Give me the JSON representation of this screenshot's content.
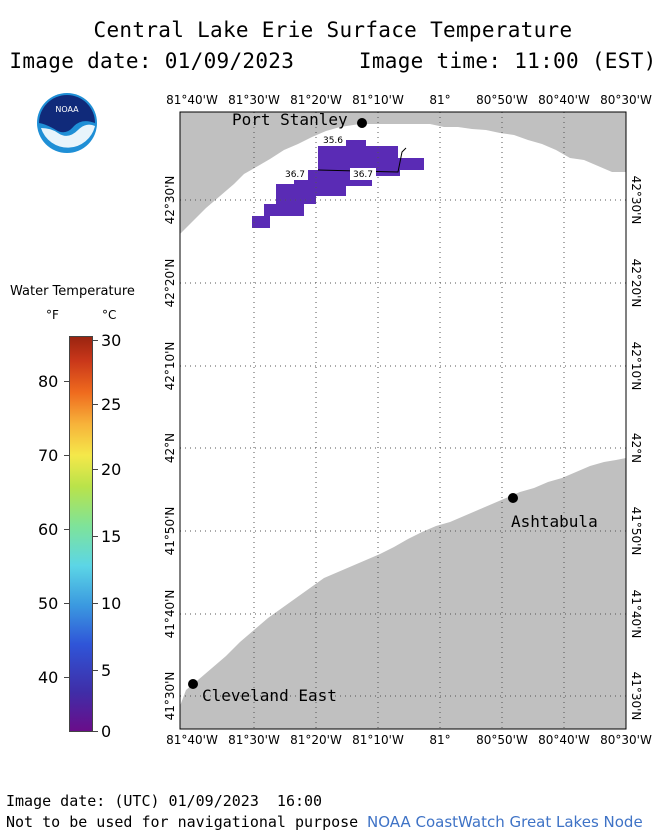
{
  "header": {
    "title": "Central Lake Erie Surface Temperature",
    "date_time": "Image date: 01/09/2023     Image time: 11:00 (EST)"
  },
  "logo": {
    "icon": "noaa-logo-icon",
    "text": "NOAA"
  },
  "legend": {
    "title": "Water Temperature",
    "unit_f": "°F",
    "unit_c": "°C",
    "fahrenheit_ticks": [
      "80",
      "70",
      "60",
      "50",
      "40"
    ],
    "celsius_ticks": [
      "30",
      "25",
      "20",
      "15",
      "10",
      "5",
      "0"
    ]
  },
  "map": {
    "lon_labels": [
      "81°40'W",
      "81°30'W",
      "81°20'W",
      "81°10'W",
      "81°",
      "80°50'W",
      "80°40'W",
      "80°30'W"
    ],
    "lat_labels": [
      "42°30'N",
      "42°20'N",
      "42°10'N",
      "42°N",
      "41°50'N",
      "41°40'N",
      "41°30'N"
    ],
    "cities": [
      {
        "name": "Port Stanley"
      },
      {
        "name": "Ashtabula"
      },
      {
        "name": "Cleveland East"
      }
    ],
    "contour_labels": [
      "35.6",
      "36.7",
      "36.7"
    ],
    "land_color": "#c0c0c0",
    "water_color": "#ffffff",
    "temperature_patch_color": "#5a2bb5"
  },
  "footer": {
    "utc_date": "Image date: (UTC) 01/09/2023  16:00",
    "disclaimer": "Not to be used for navigational purpose",
    "credit": "NOAA CoastWatch Great Lakes Node"
  }
}
